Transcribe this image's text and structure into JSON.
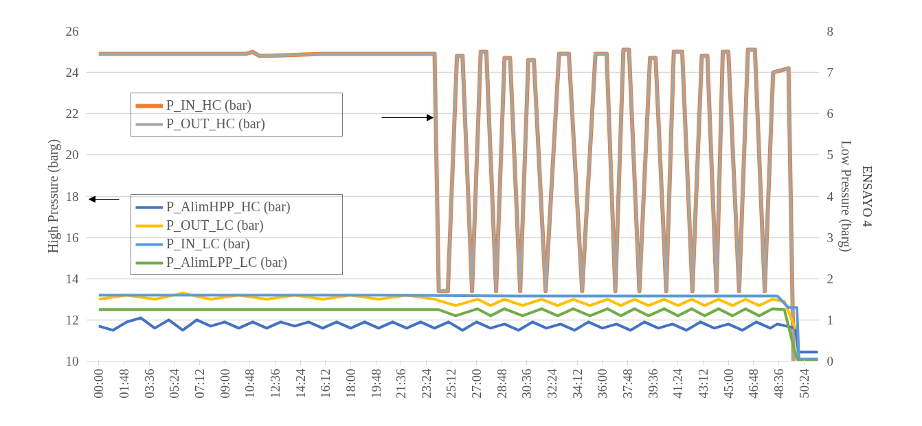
{
  "chart_data": {
    "type": "line",
    "title": "ENSAYO 4",
    "ylabel": "High Pressure (barg)",
    "y2label": "Low Pressure (barg)",
    "xlim": [
      -0.9,
      51.5
    ],
    "ylim": [
      10,
      26
    ],
    "yticks": [
      10,
      12,
      14,
      16,
      18,
      20,
      22,
      24,
      26
    ],
    "y2lim": [
      0,
      8
    ],
    "y2ticks": [
      0,
      1,
      2,
      3,
      4,
      5,
      6,
      7,
      8
    ],
    "xticks": [
      {
        "value": 0,
        "label": "00:00"
      },
      {
        "value": 1.8,
        "label": "01:48"
      },
      {
        "value": 3.6,
        "label": "03:36"
      },
      {
        "value": 5.4,
        "label": "05:24"
      },
      {
        "value": 7.2,
        "label": "07:12"
      },
      {
        "value": 9,
        "label": "09:00"
      },
      {
        "value": 10.8,
        "label": "10:48"
      },
      {
        "value": 12.6,
        "label": "12:36"
      },
      {
        "value": 14.4,
        "label": "14:24"
      },
      {
        "value": 16.2,
        "label": "16:12"
      },
      {
        "value": 18,
        "label": "18:00"
      },
      {
        "value": 19.8,
        "label": "19:48"
      },
      {
        "value": 21.6,
        "label": "21:36"
      },
      {
        "value": 23.4,
        "label": "23:24"
      },
      {
        "value": 25.2,
        "label": "25:12"
      },
      {
        "value": 27,
        "label": "27:00"
      },
      {
        "value": 28.8,
        "label": "28:48"
      },
      {
        "value": 30.6,
        "label": "30:36"
      },
      {
        "value": 32.4,
        "label": "32:24"
      },
      {
        "value": 34.2,
        "label": "34:12"
      },
      {
        "value": 36,
        "label": "36:00"
      },
      {
        "value": 37.8,
        "label": "37:48"
      },
      {
        "value": 39.6,
        "label": "39:36"
      },
      {
        "value": 41.4,
        "label": "41:24"
      },
      {
        "value": 43.2,
        "label": "43:12"
      },
      {
        "value": 45,
        "label": "45:00"
      },
      {
        "value": 46.8,
        "label": "46:48"
      },
      {
        "value": 48.6,
        "label": "48:36"
      },
      {
        "value": 50.4,
        "label": "50:24"
      }
    ],
    "grid": "y",
    "legend": "left",
    "line_style": "solid",
    "marker": "none",
    "series": [
      {
        "name": "P_IN_HC (bar)",
        "color": "#ed7d31",
        "x": [
          0,
          5,
          10.5,
          11,
          11.5,
          12,
          16,
          20,
          24.0,
          24.3,
          24.95,
          25.6,
          26.0,
          26.68,
          27.3,
          27.7,
          28.4,
          29.0,
          29.4,
          30.12,
          30.7,
          31.1,
          31.94,
          32.9,
          33.6,
          34.55,
          35.5,
          36.3,
          36.92,
          37.5,
          37.9,
          38.64,
          39.4,
          39.8,
          40.56,
          41.1,
          41.7,
          42.43,
          43.1,
          43.5,
          44.15,
          44.6,
          45.0,
          45.77,
          46.4,
          46.9,
          47.6,
          48.2,
          49.3,
          49.66
        ],
        "values": [
          24.9,
          24.9,
          24.9,
          25.0,
          24.8,
          24.8,
          24.9,
          24.9,
          24.9,
          13.4,
          13.4,
          24.8,
          24.8,
          13.4,
          25.0,
          25.0,
          13.4,
          24.7,
          24.7,
          13.4,
          24.6,
          24.6,
          13.4,
          24.9,
          24.9,
          13.4,
          24.9,
          24.9,
          13.4,
          25.1,
          25.1,
          13.4,
          24.7,
          24.7,
          13.4,
          25.0,
          25.0,
          13.4,
          24.8,
          24.8,
          13.4,
          25.0,
          25.0,
          13.4,
          25.1,
          25.1,
          13.4,
          24.0,
          24.2,
          10
        ]
      },
      {
        "name": "P_OUT_HC (bar)",
        "color": "#a5a5a5",
        "x": [
          0,
          5,
          10.5,
          11,
          11.5,
          12,
          16,
          20,
          24.0,
          24.3,
          24.95,
          25.6,
          26.0,
          26.68,
          27.3,
          27.7,
          28.4,
          29.0,
          29.4,
          30.12,
          30.7,
          31.1,
          31.94,
          32.9,
          33.6,
          34.55,
          35.5,
          36.3,
          36.92,
          37.5,
          37.9,
          38.64,
          39.4,
          39.8,
          40.56,
          41.1,
          41.7,
          42.43,
          43.1,
          43.5,
          44.15,
          44.6,
          45.0,
          45.77,
          46.4,
          46.9,
          47.6,
          48.2,
          49.3,
          49.66
        ],
        "values": [
          24.9,
          24.9,
          24.9,
          25.0,
          24.8,
          24.8,
          24.9,
          24.9,
          24.9,
          13.4,
          13.4,
          24.8,
          24.8,
          13.4,
          25.0,
          25.0,
          13.4,
          24.7,
          24.7,
          13.4,
          24.6,
          24.6,
          13.4,
          24.9,
          24.9,
          13.4,
          24.9,
          24.9,
          13.4,
          25.1,
          25.1,
          13.4,
          24.7,
          24.7,
          13.4,
          25.0,
          25.0,
          13.4,
          24.8,
          24.8,
          13.4,
          25.0,
          25.0,
          13.4,
          25.1,
          25.1,
          13.4,
          24.0,
          24.2,
          10
        ]
      },
      {
        "name": "P_AlimHPP_HC (bar)",
        "color": "#4472c4",
        "axis": "y2",
        "x": [
          0,
          1,
          2,
          3,
          4,
          5,
          6,
          7,
          8,
          9,
          10,
          11,
          12,
          13,
          14,
          15,
          16,
          17,
          18,
          19,
          20,
          21,
          22,
          23,
          24,
          25,
          26,
          27,
          28,
          29,
          30,
          31,
          32,
          33,
          34,
          35,
          36,
          37,
          38,
          39,
          40,
          41,
          42,
          43,
          44,
          45,
          46,
          47,
          48,
          48.5,
          49.8,
          50.0,
          51.4
        ],
        "values": [
          0.85,
          0.75,
          0.95,
          1.05,
          0.8,
          1.0,
          0.75,
          1.0,
          0.85,
          0.95,
          0.8,
          0.95,
          0.8,
          0.95,
          0.85,
          0.95,
          0.8,
          0.95,
          0.8,
          0.95,
          0.8,
          0.95,
          0.8,
          0.95,
          0.8,
          0.95,
          0.75,
          0.95,
          0.8,
          0.9,
          0.75,
          0.95,
          0.8,
          0.9,
          0.75,
          0.95,
          0.8,
          0.9,
          0.75,
          0.95,
          0.8,
          0.9,
          0.75,
          0.95,
          0.8,
          0.9,
          0.75,
          0.95,
          0.8,
          0.9,
          0.8,
          0.22,
          0.22
        ]
      },
      {
        "name": "P_OUT_LC (bar)",
        "color": "#ffc000",
        "axis": "y2",
        "x": [
          0,
          2,
          4,
          6,
          8,
          10,
          12,
          14,
          16,
          18,
          20,
          22,
          24,
          25.5,
          27.07,
          28.0,
          28.99,
          30.3,
          31.65,
          32.8,
          33.91,
          35.1,
          36.37,
          37.3,
          38.29,
          39.3,
          40.41,
          41.4,
          42.38,
          43.3,
          44.3,
          45.3,
          46.22,
          47.2,
          48.14,
          49.0,
          49.8
        ],
        "values": [
          1.5,
          1.6,
          1.5,
          1.65,
          1.5,
          1.6,
          1.5,
          1.6,
          1.5,
          1.6,
          1.5,
          1.6,
          1.5,
          1.35,
          1.5,
          1.35,
          1.5,
          1.35,
          1.5,
          1.35,
          1.5,
          1.35,
          1.5,
          1.35,
          1.5,
          1.35,
          1.5,
          1.35,
          1.5,
          1.35,
          1.5,
          1.35,
          1.5,
          1.35,
          1.5,
          1.45,
          0.78
        ]
      },
      {
        "name": "P_IN_LC (bar)",
        "color": "#5b9bd5",
        "axis": "y2",
        "x": [
          0,
          10,
          20,
          30,
          40,
          48.5,
          49.3,
          49.9,
          50.05,
          51.4
        ],
        "values": [
          1.6,
          1.6,
          1.6,
          1.58,
          1.58,
          1.58,
          1.3,
          1.3,
          0.05,
          0.05
        ]
      },
      {
        "name": "P_AlimLPP_LC (bar)",
        "color": "#70ad47",
        "axis": "y2",
        "x": [
          0,
          10,
          20,
          24.3,
          25.5,
          27.07,
          28.0,
          28.99,
          30.3,
          31.65,
          32.8,
          33.91,
          35.1,
          36.37,
          37.3,
          38.29,
          39.3,
          40.41,
          41.4,
          42.38,
          43.3,
          44.3,
          45.3,
          46.22,
          47.2,
          48.14,
          49.0,
          49.7,
          50.0,
          51.4
        ],
        "values": [
          1.25,
          1.25,
          1.25,
          1.25,
          1.1,
          1.27,
          1.1,
          1.27,
          1.1,
          1.27,
          1.1,
          1.27,
          1.1,
          1.27,
          1.1,
          1.27,
          1.1,
          1.27,
          1.1,
          1.27,
          1.1,
          1.27,
          1.1,
          1.27,
          1.1,
          1.27,
          1.25,
          0.3,
          0,
          0
        ]
      }
    ]
  }
}
